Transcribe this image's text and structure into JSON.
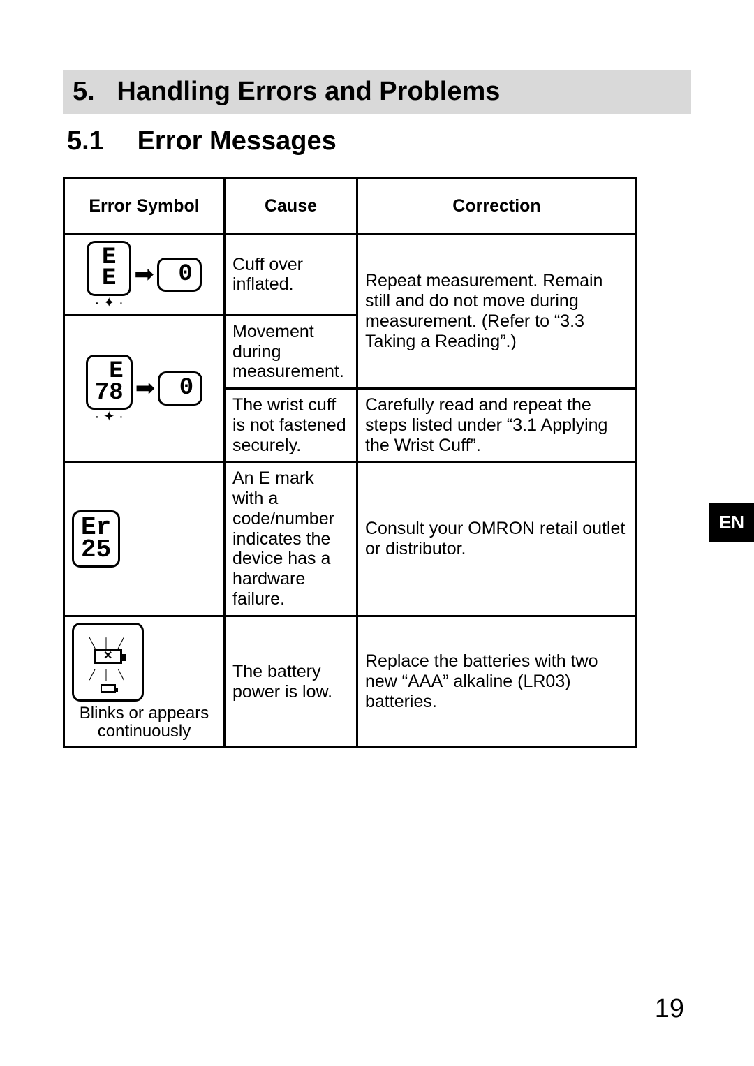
{
  "section": {
    "number": "5.",
    "title": "Handling Errors and Problems"
  },
  "subsection": {
    "number": "5.1",
    "title": "Error Messages"
  },
  "table": {
    "headers": {
      "symbol": "Error Symbol",
      "cause": "Cause",
      "correction": "Correction"
    },
    "rows": {
      "r1": {
        "symbol_left": "E\nE",
        "symbol_right": "0",
        "cause": "Cuff over inflated.",
        "correction": "Repeat measurement. Remain still and do not move during measurement. (Refer to “3.3 Taking a Reading”.)"
      },
      "r2": {
        "symbol_left": "E\n78",
        "symbol_right": "0",
        "cause": "Movement during measurement."
      },
      "r3": {
        "cause": "The wrist cuff is not fastened securely.",
        "correction": "Carefully read and repeat the steps listed under “3.1 Applying the Wrist Cuff”."
      },
      "r4": {
        "symbol": "Er\n25",
        "cause": "An E mark with a code/number indicates the device has a hardware failure.",
        "correction": "Consult your OMRON retail outlet or distributor."
      },
      "r5": {
        "caption": "Blinks or appears continuously",
        "cause": "The battery power is low.",
        "correction": "Replace the batteries with two new “AAA” alkaline (LR03) batteries."
      }
    }
  },
  "language_tab": "EN",
  "page_number": "19",
  "colors": {
    "heading_bg": "#d9d9d9",
    "text": "#000000",
    "page_bg": "#ffffff",
    "tab_bg": "#000000",
    "tab_fg": "#ffffff"
  }
}
